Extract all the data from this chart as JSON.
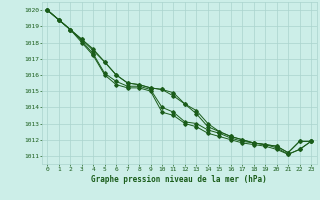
{
  "xlabel": "Graphe pression niveau de la mer (hPa)",
  "xlim": [
    -0.5,
    23.5
  ],
  "ylim": [
    1010.5,
    1020.5
  ],
  "yticks": [
    1011,
    1012,
    1013,
    1014,
    1015,
    1016,
    1017,
    1018,
    1019,
    1020
  ],
  "xticks": [
    0,
    1,
    2,
    3,
    4,
    5,
    6,
    7,
    8,
    9,
    10,
    11,
    12,
    13,
    14,
    15,
    16,
    17,
    18,
    19,
    20,
    21,
    22,
    23
  ],
  "background_color": "#cceee8",
  "grid_color": "#aad4ce",
  "line_color": "#1a5c1a",
  "marker": "D",
  "series": [
    [
      1020.0,
      1019.4,
      1018.8,
      1018.2,
      1017.5,
      1016.8,
      1016.0,
      1015.5,
      1015.4,
      1015.2,
      1015.1,
      1014.9,
      1014.2,
      1013.8,
      1013.0,
      1012.5,
      1012.2,
      1012.0,
      1011.8,
      1011.7,
      1011.6,
      1011.2,
      1011.9,
      1011.9
    ],
    [
      1020.0,
      1019.4,
      1018.8,
      1018.1,
      1017.3,
      1016.1,
      1015.6,
      1015.3,
      1015.3,
      1015.1,
      1014.0,
      1013.7,
      1013.1,
      1013.0,
      1012.6,
      1012.4,
      1012.1,
      1011.9,
      1011.8,
      1011.7,
      1011.5,
      1011.1,
      1011.4,
      1011.9
    ],
    [
      1020.0,
      1019.4,
      1018.8,
      1018.0,
      1017.2,
      1016.0,
      1015.4,
      1015.2,
      1015.2,
      1015.0,
      1013.7,
      1013.5,
      1013.0,
      1012.8,
      1012.4,
      1012.2,
      1012.0,
      1011.8,
      1011.7,
      1011.6,
      1011.4,
      1011.1,
      1011.4,
      1011.9
    ],
    [
      1020.0,
      1019.4,
      1018.8,
      1018.2,
      1017.6,
      1016.8,
      1016.0,
      1015.5,
      1015.4,
      1015.2,
      1015.1,
      1014.7,
      1014.2,
      1013.6,
      1012.8,
      1012.5,
      1012.2,
      1012.0,
      1011.8,
      1011.7,
      1011.6,
      1011.2,
      1011.9,
      1011.9
    ]
  ]
}
